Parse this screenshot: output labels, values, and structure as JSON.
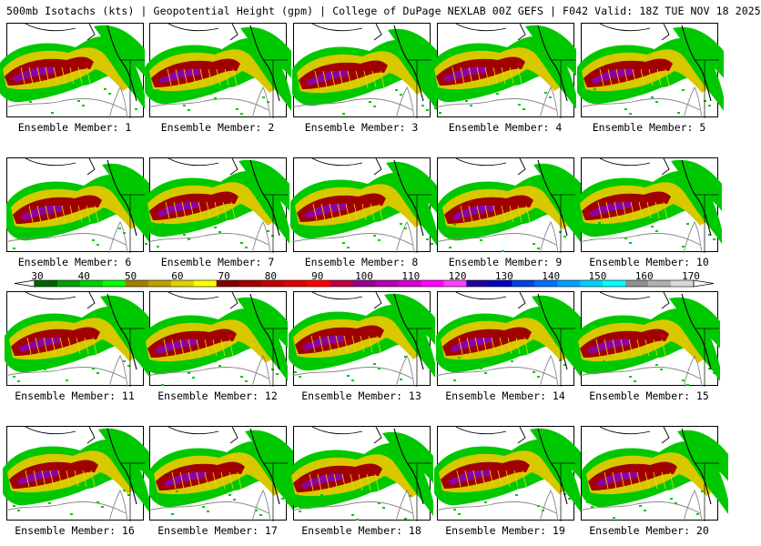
{
  "title": "500mb Isotachs (kts) | Geopotential Height (gpm) | College of DuPage NEXLAB   00Z GEFS | F042 Valid: 18Z TUE NOV 18 2025",
  "members": [
    {
      "label": "Ensemble Member: 1"
    },
    {
      "label": "Ensemble Member: 2"
    },
    {
      "label": "Ensemble Member: 3"
    },
    {
      "label": "Ensemble Member: 4"
    },
    {
      "label": "Ensemble Member: 5"
    },
    {
      "label": "Ensemble Member: 6"
    },
    {
      "label": "Ensemble Member: 7"
    },
    {
      "label": "Ensemble Member: 8"
    },
    {
      "label": "Ensemble Member: 9"
    },
    {
      "label": "Ensemble Member: 10"
    },
    {
      "label": "Ensemble Member: 11"
    },
    {
      "label": "Ensemble Member: 12"
    },
    {
      "label": "Ensemble Member: 13"
    },
    {
      "label": "Ensemble Member: 14"
    },
    {
      "label": "Ensemble Member: 15"
    },
    {
      "label": "Ensemble Member: 16"
    },
    {
      "label": "Ensemble Member: 17"
    },
    {
      "label": "Ensemble Member: 18"
    },
    {
      "label": "Ensemble Member: 19"
    },
    {
      "label": "Ensemble Member: 20"
    }
  ],
  "colorbar": {
    "labels": [
      "30",
      "40",
      "50",
      "60",
      "70",
      "80",
      "90",
      "100",
      "110",
      "120",
      "130",
      "140",
      "150",
      "160",
      "170"
    ],
    "colors": [
      "#006400",
      "#00a000",
      "#00d000",
      "#00ff00",
      "#a08000",
      "#c0a000",
      "#e0d000",
      "#ffff00",
      "#800000",
      "#a00000",
      "#c00000",
      "#e00000",
      "#ff0000",
      "#c00040",
      "#900090",
      "#b000b0",
      "#d000d0",
      "#ff00ff",
      "#ff40ff",
      "#2000a0",
      "#0000c0",
      "#0040e0",
      "#0070ff",
      "#00a0ff",
      "#00d0ff",
      "#00ffff",
      "#909090",
      "#b0b0b0",
      "#d8d8d8"
    ]
  },
  "icons": {
    "map": "isotach-map",
    "arrow_left": "colorbar-arrow-left",
    "arrow_right": "colorbar-arrow-right"
  }
}
